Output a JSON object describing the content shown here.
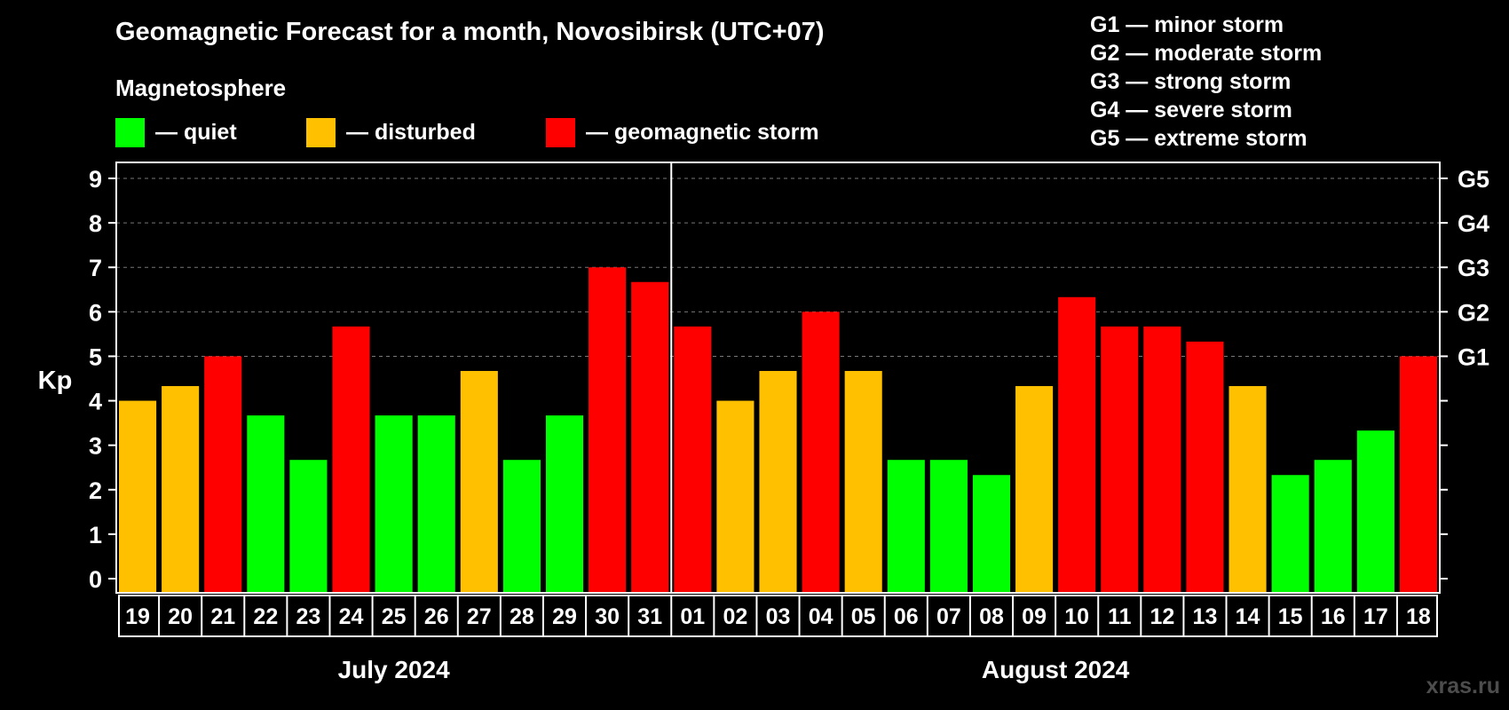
{
  "colors": {
    "quiet": "#00ff00",
    "disturbed": "#ffc000",
    "storm": "#ff0000"
  },
  "legend": {
    "title": "Magnetosphere",
    "items": [
      {
        "key": "quiet",
        "label": "— quiet"
      },
      {
        "key": "disturbed",
        "label": "— disturbed"
      },
      {
        "key": "storm",
        "label": "— geomagnetic storm"
      }
    ]
  },
  "storm_scale": [
    "G1 — minor storm",
    "G2 — moderate storm",
    "G3 — strong storm",
    "G4 — severe storm",
    "G5 — extreme storm"
  ],
  "watermark": "xras.ru",
  "chart_data": {
    "type": "bar",
    "title": "Geomagnetic Forecast for a month, Novosibirsk (UTC+07)",
    "ylabel": "Kp",
    "ylim": [
      0,
      9
    ],
    "yticks": [
      "0",
      "1",
      "2",
      "3",
      "4",
      "5",
      "6",
      "7",
      "8",
      "9"
    ],
    "right_ticks": [
      {
        "value": 5,
        "label": "G1"
      },
      {
        "value": 6,
        "label": "G2"
      },
      {
        "value": 7,
        "label": "G3"
      },
      {
        "value": 8,
        "label": "G4"
      },
      {
        "value": 9,
        "label": "G5"
      }
    ],
    "grid": true,
    "months": [
      {
        "label": "July 2024",
        "days": 13
      },
      {
        "label": "August 2024",
        "days": 18
      }
    ],
    "categories": [
      "19",
      "20",
      "21",
      "22",
      "23",
      "24",
      "25",
      "26",
      "27",
      "28",
      "29",
      "30",
      "31",
      "01",
      "02",
      "03",
      "04",
      "05",
      "06",
      "07",
      "08",
      "09",
      "10",
      "11",
      "12",
      "13",
      "14",
      "15",
      "16",
      "17",
      "18"
    ],
    "values": [
      4.0,
      4.33,
      5.0,
      3.67,
      2.67,
      5.67,
      3.67,
      3.67,
      4.67,
      2.67,
      3.67,
      7.0,
      6.67,
      5.67,
      4.0,
      4.67,
      6.0,
      4.67,
      2.67,
      2.67,
      2.33,
      4.33,
      6.33,
      5.67,
      5.67,
      5.33,
      4.33,
      2.33,
      2.67,
      3.33,
      5.0
    ],
    "levels": [
      "disturbed",
      "disturbed",
      "storm",
      "quiet",
      "quiet",
      "storm",
      "quiet",
      "quiet",
      "disturbed",
      "quiet",
      "quiet",
      "storm",
      "storm",
      "storm",
      "disturbed",
      "disturbed",
      "storm",
      "disturbed",
      "quiet",
      "quiet",
      "quiet",
      "disturbed",
      "storm",
      "storm",
      "storm",
      "storm",
      "disturbed",
      "quiet",
      "quiet",
      "quiet",
      "storm"
    ]
  }
}
